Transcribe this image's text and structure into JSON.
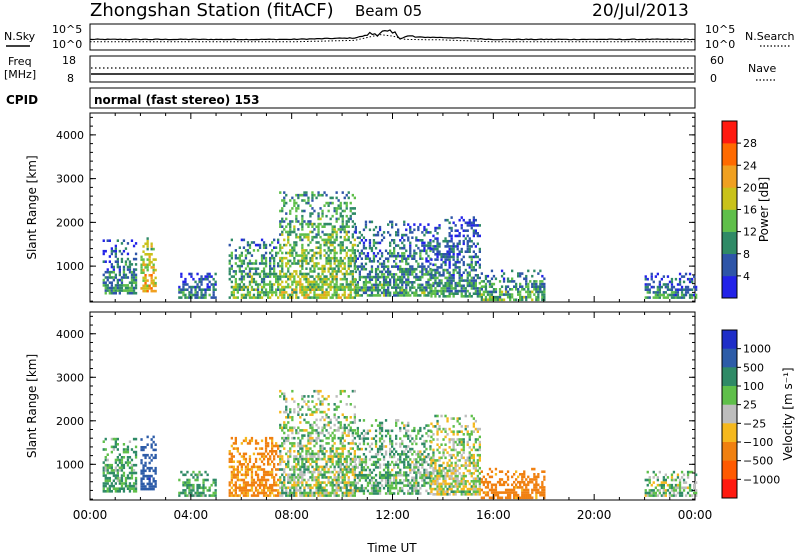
{
  "header": {
    "station": "Zhongshan Station (fitACF)",
    "beam": "Beam 05",
    "date": "20/Jul/2013",
    "mode": "normal (fast stereo) 153"
  },
  "labels": {
    "nsky": "N.Sky",
    "nsky_ticks": [
      "10^5",
      "10^0"
    ],
    "nsearch": "N.Search",
    "nsearch_ticks": [
      "10^5",
      "10^0"
    ],
    "freq_top": "Freq",
    "freq_unit": "[MHz]",
    "freq_ticks": [
      "18",
      "8"
    ],
    "nave": "Nave",
    "nave_ticks": [
      "60",
      "0"
    ],
    "cpid": "CPID"
  },
  "chart_data": [
    {
      "type": "line",
      "title": "",
      "series": [
        {
          "name": "N.Sky",
          "style": "solid"
        },
        {
          "name": "N.Search",
          "style": "dotted"
        }
      ],
      "ytick_labels": [
        "10^5",
        "10^0"
      ],
      "x": [
        "00:00",
        "08:00",
        "10:30",
        "11:30",
        "12:00",
        "12:30",
        "14:00",
        "16:00",
        "20:00",
        "24:00"
      ],
      "approx_log10_level": [
        2.0,
        2.0,
        2.3,
        3.5,
        3.2,
        2.5,
        2.4,
        2.0,
        2.0,
        2.0
      ]
    },
    {
      "type": "line",
      "series": [
        {
          "name": "Freq",
          "unit": "MHz",
          "style": "solid",
          "ylim": [
            8,
            18
          ],
          "values_x": [
            "00:00",
            "24:00"
          ],
          "values": [
            10.5,
            10.5
          ]
        },
        {
          "name": "Nave",
          "style": "dotted",
          "ylim": [
            0,
            60
          ],
          "values_x": [
            "00:00",
            "24:00"
          ],
          "values": [
            27,
            27
          ]
        }
      ]
    },
    {
      "type": "heatmap",
      "title": "Power",
      "xlabel": "Time UT",
      "ylabel": "Slant Range [km]",
      "x_ticks": [
        "00:00",
        "04:00",
        "08:00",
        "12:00",
        "16:00",
        "20:00",
        "00:00"
      ],
      "xlim_hours": [
        0,
        24
      ],
      "y_ticks": [
        1000,
        2000,
        3000,
        4000
      ],
      "ylim": [
        180,
        4500
      ],
      "colorbar": {
        "label": "Power [dB]",
        "ticks": [
          "4",
          "8",
          "12",
          "16",
          "20",
          "24",
          "28"
        ],
        "range": [
          0,
          30
        ],
        "colors": [
          "#2222e8",
          "#2e55a8",
          "#2f8a66",
          "#5fbf4a",
          "#c9c21a",
          "#f0a020",
          "#ff6a00",
          "#ff1a10"
        ]
      },
      "regions": [
        {
          "t0": 0.5,
          "t1": 1.8,
          "r0": 350,
          "r1": 1600,
          "level": 10
        },
        {
          "t0": 2.0,
          "t1": 2.6,
          "r0": 400,
          "r1": 1650,
          "level": 20
        },
        {
          "t0": 3.5,
          "t1": 5.0,
          "r0": 250,
          "r1": 800,
          "level": 9
        },
        {
          "t0": 5.5,
          "t1": 7.5,
          "r0": 250,
          "r1": 1600,
          "level": 13
        },
        {
          "t0": 7.5,
          "t1": 10.5,
          "r0": 250,
          "r1": 2700,
          "level": 15
        },
        {
          "t0": 10.5,
          "t1": 13.5,
          "r0": 300,
          "r1": 2000,
          "level": 11
        },
        {
          "t0": 13.5,
          "t1": 15.5,
          "r0": 280,
          "r1": 2100,
          "level": 10
        },
        {
          "t0": 15.5,
          "t1": 18.0,
          "r0": 200,
          "r1": 900,
          "level": 12
        },
        {
          "t0": 22.0,
          "t1": 24.0,
          "r0": 250,
          "r1": 800,
          "level": 9
        }
      ]
    },
    {
      "type": "heatmap",
      "title": "Velocity",
      "xlabel": "Time UT",
      "ylabel": "Slant Range [km]",
      "x_ticks": [
        "00:00",
        "04:00",
        "08:00",
        "12:00",
        "16:00",
        "20:00",
        "00:00"
      ],
      "xlim_hours": [
        0,
        24
      ],
      "y_ticks": [
        1000,
        2000,
        3000,
        4000
      ],
      "ylim": [
        180,
        4500
      ],
      "colorbar": {
        "label": "Velocity [m s⁻¹]",
        "ticks": [
          "1000",
          "500",
          "100",
          "25",
          "−25",
          "−100",
          "−500",
          "−1000"
        ],
        "colors": [
          "#1f2ec8",
          "#2d5ca8",
          "#2f8a66",
          "#5fbf4a",
          "#bdbdbd",
          "#f5b81e",
          "#f08010",
          "#ff5a00",
          "#ff1a10"
        ]
      },
      "regions": [
        {
          "t0": 0.5,
          "t1": 1.8,
          "r0": 350,
          "r1": 1600,
          "velocity": 120
        },
        {
          "t0": 2.0,
          "t1": 2.6,
          "r0": 400,
          "r1": 1650,
          "velocity": 900
        },
        {
          "t0": 3.5,
          "t1": 5.0,
          "r0": 250,
          "r1": 800,
          "velocity": 110
        },
        {
          "t0": 5.5,
          "t1": 7.5,
          "r0": 250,
          "r1": 1600,
          "velocity": -150
        },
        {
          "t0": 7.5,
          "t1": 10.5,
          "r0": 250,
          "r1": 2700,
          "velocity": 40
        },
        {
          "t0": 10.5,
          "t1": 13.5,
          "r0": 300,
          "r1": 2000,
          "velocity": 80
        },
        {
          "t0": 13.5,
          "t1": 15.5,
          "r0": 280,
          "r1": 2100,
          "velocity": 10
        },
        {
          "t0": 15.5,
          "t1": 18.0,
          "r0": 200,
          "r1": 900,
          "velocity": -200
        },
        {
          "t0": 22.0,
          "t1": 24.0,
          "r0": 250,
          "r1": 800,
          "velocity": 60
        }
      ]
    }
  ]
}
